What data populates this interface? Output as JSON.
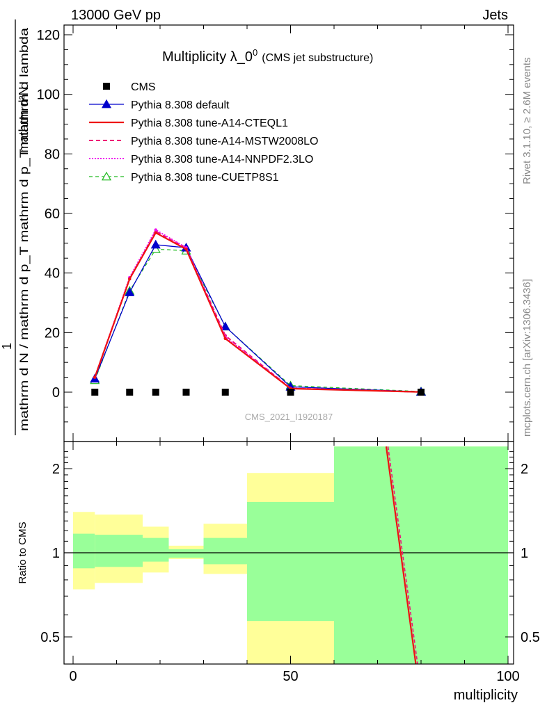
{
  "header": {
    "left": "13000 GeV pp",
    "right": "Jets"
  },
  "side_texts": {
    "rivet": "Rivet 3.1.10, ≥ 2.6M events",
    "mcplots": "mcplots.cern.ch [arXiv:1306.3436]"
  },
  "watermark": "CMS_2021_I1920187",
  "colors": {
    "cms": "#000000",
    "default": "#0000cc",
    "cteql1": "#ee1111",
    "mstw": "#ee1177",
    "nnpdf": "#ee11ee",
    "cuetp8s1": "#22bb22",
    "band_inner": "#99ff99",
    "band_outer": "#ffff99"
  },
  "chart_data": [
    {
      "type": "line",
      "title": "Multiplicity λ_0^0 (CMS jet substructure)",
      "title_main": "Multiplicity λ_0",
      "title_sup": "0",
      "title_sub": "(CMS jet substructure)",
      "ylabel_num": "1",
      "ylabel_num2": "mathrm d²N",
      "ylabel_den": "mathrm d N / mathrm d p_T mathrm d p_T mathrm d lambda",
      "xlim": [
        -2,
        100
      ],
      "ylim": [
        -14,
        124
      ],
      "yticks": [
        0,
        20,
        40,
        60,
        80,
        100,
        120
      ],
      "x": [
        5,
        13,
        19,
        26,
        35,
        50,
        80
      ],
      "legend": [
        "CMS",
        "Pythia 8.308 default",
        "Pythia 8.308 tune-A14-CTEQL1",
        "Pythia 8.308 tune-A14-MSTW2008LO",
        "Pythia 8.308 tune-A14-NNPDF2.3LO",
        "Pythia 8.308 tune-CUETP8S1"
      ],
      "series": [
        {
          "name": "CMS",
          "key": "cms",
          "values": [
            0,
            0,
            0,
            0,
            0,
            0,
            0
          ]
        },
        {
          "name": "Pythia 8.308 default",
          "key": "default",
          "values": [
            4.5,
            33.5,
            49.5,
            48.5,
            22.0,
            1.8,
            0.1
          ]
        },
        {
          "name": "Pythia 8.308 tune-A14-CTEQL1",
          "key": "cteql1",
          "values": [
            5.0,
            38.0,
            53.5,
            48.0,
            18.0,
            1.2,
            0.05
          ]
        },
        {
          "name": "Pythia 8.308 tune-A14-MSTW2008LO",
          "key": "mstw",
          "values": [
            5.0,
            38.0,
            54.0,
            48.5,
            19.0,
            1.3,
            0.05
          ]
        },
        {
          "name": "Pythia 8.308 tune-A14-NNPDF2.3LO",
          "key": "nnpdf",
          "values": [
            5.0,
            38.5,
            54.5,
            48.5,
            18.5,
            1.3,
            0.05
          ]
        },
        {
          "name": "Pythia 8.308 tune-CUETP8S1",
          "key": "cuetp8s1",
          "values": [
            4.0,
            34.0,
            48.0,
            47.5,
            22.0,
            2.2,
            0.2
          ]
        }
      ]
    },
    {
      "type": "area",
      "ylabel": "Ratio to CMS",
      "xlabel": "multiplicity",
      "xlim": [
        -2,
        100
      ],
      "ylim": [
        0.4,
        2.4
      ],
      "log_scale": true,
      "xticks": [
        0,
        50,
        100
      ],
      "yticks": [
        0.5,
        1,
        2
      ],
      "bins": [
        [
          0,
          5
        ],
        [
          5,
          16
        ],
        [
          16,
          22
        ],
        [
          22,
          30
        ],
        [
          30,
          40
        ],
        [
          40,
          60
        ],
        [
          60,
          100
        ]
      ],
      "band_inner_low": [
        0.88,
        0.89,
        0.93,
        0.96,
        0.91,
        0.57,
        0.4
      ],
      "band_inner_high": [
        1.17,
        1.16,
        1.13,
        1.03,
        1.13,
        1.52,
        2.4
      ],
      "band_outer_low": [
        0.74,
        0.78,
        0.85,
        0.95,
        0.84,
        0.4,
        0.4
      ],
      "band_outer_high": [
        1.4,
        1.37,
        1.24,
        1.06,
        1.27,
        1.93,
        2.4
      ],
      "ratio_lines": [
        {
          "key": "cteql1",
          "x": [
            72,
            78.8
          ],
          "values": [
            2.4,
            0.4
          ]
        },
        {
          "key": "mstw",
          "x": [
            72.4,
            79.2
          ],
          "values": [
            2.4,
            0.4
          ]
        }
      ]
    }
  ]
}
